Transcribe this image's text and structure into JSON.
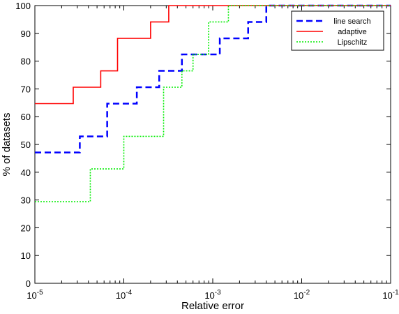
{
  "chart_data": {
    "type": "line",
    "title": "",
    "xlabel": "Relative error",
    "ylabel": "% of datasets",
    "xscale": "log",
    "xlim": [
      1e-05,
      0.1
    ],
    "ylim": [
      0,
      100
    ],
    "x_ticks": [
      {
        "value": 1e-05,
        "base": "10",
        "exp": "-5"
      },
      {
        "value": 0.0001,
        "base": "10",
        "exp": "-4"
      },
      {
        "value": 0.001,
        "base": "10",
        "exp": "-3"
      },
      {
        "value": 0.01,
        "base": "10",
        "exp": "-2"
      },
      {
        "value": 0.1,
        "base": "10",
        "exp": "-1"
      }
    ],
    "y_ticks": [
      "0",
      "10",
      "20",
      "30",
      "40",
      "50",
      "60",
      "70",
      "80",
      "90",
      "100"
    ],
    "grid": false,
    "legend_position": "top-right",
    "step": true,
    "series": [
      {
        "name": "line search",
        "color": "#0000ff",
        "style": "dashed",
        "points": [
          [
            1e-05,
            47.1
          ],
          [
            3.2e-05,
            52.9
          ],
          [
            6.5e-05,
            64.7
          ],
          [
            0.00014,
            70.6
          ],
          [
            0.00025,
            76.5
          ],
          [
            0.00045,
            82.4
          ],
          [
            0.0012,
            88.2
          ],
          [
            0.0025,
            94.1
          ],
          [
            0.004,
            100
          ],
          [
            0.1,
            100
          ]
        ]
      },
      {
        "name": "adaptive",
        "color": "#ff0000",
        "style": "solid",
        "points": [
          [
            1e-05,
            64.7
          ],
          [
            2.7e-05,
            70.6
          ],
          [
            5.5e-05,
            76.5
          ],
          [
            8.5e-05,
            88.2
          ],
          [
            0.0002,
            94.1
          ],
          [
            0.00032,
            100
          ],
          [
            0.1,
            100
          ]
        ]
      },
      {
        "name": "Lipschitz",
        "color": "#00ee00",
        "style": "dotted",
        "points": [
          [
            1e-05,
            29.4
          ],
          [
            4.2e-05,
            41.2
          ],
          [
            0.0001,
            52.9
          ],
          [
            0.00028,
            70.6
          ],
          [
            0.00045,
            76.5
          ],
          [
            0.0006,
            82.4
          ],
          [
            0.0009,
            94.1
          ],
          [
            0.0015,
            100
          ],
          [
            0.1,
            100
          ]
        ]
      }
    ]
  }
}
